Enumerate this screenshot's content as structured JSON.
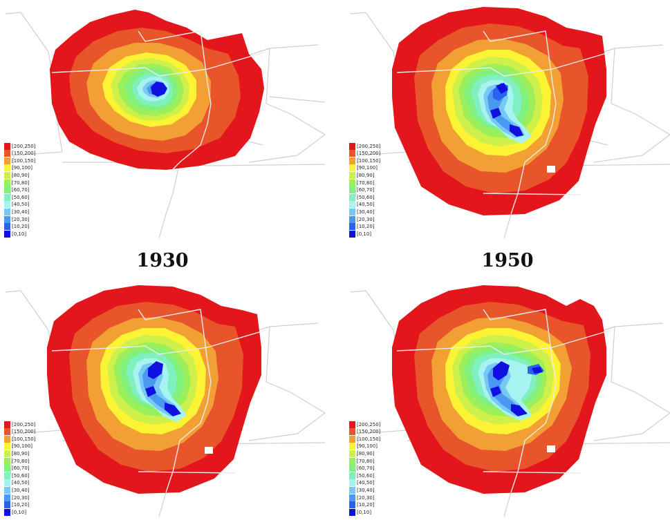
{
  "legend": {
    "bins": [
      {
        "label": "[200,250]",
        "color": "#e3171b"
      },
      {
        "label": "[150,200]",
        "color": "#e8552a"
      },
      {
        "label": "[100,150]",
        "color": "#f2a033"
      },
      {
        "label": "[90,100]",
        "color": "#fbf334"
      },
      {
        "label": "[80,90]",
        "color": "#cdf04a"
      },
      {
        "label": "[70,80]",
        "color": "#9bef5a"
      },
      {
        "label": "[60,70]",
        "color": "#80f07f"
      },
      {
        "label": "[50,60]",
        "color": "#80f0c0"
      },
      {
        "label": "[40,50]",
        "color": "#a6f3f1"
      },
      {
        "label": "[30,40]",
        "color": "#78c8f6"
      },
      {
        "label": "[20,30]",
        "color": "#4a98f1"
      },
      {
        "label": "[10,20]",
        "color": "#2a62ee"
      },
      {
        "label": "[0,10]",
        "color": "#1010e0"
      }
    ]
  },
  "maps": [
    {
      "id": "map-1",
      "caption": "1930"
    },
    {
      "id": "map-2",
      "caption": "1950"
    },
    {
      "id": "map-3",
      "caption": ""
    },
    {
      "id": "map-4",
      "caption": ""
    }
  ]
}
